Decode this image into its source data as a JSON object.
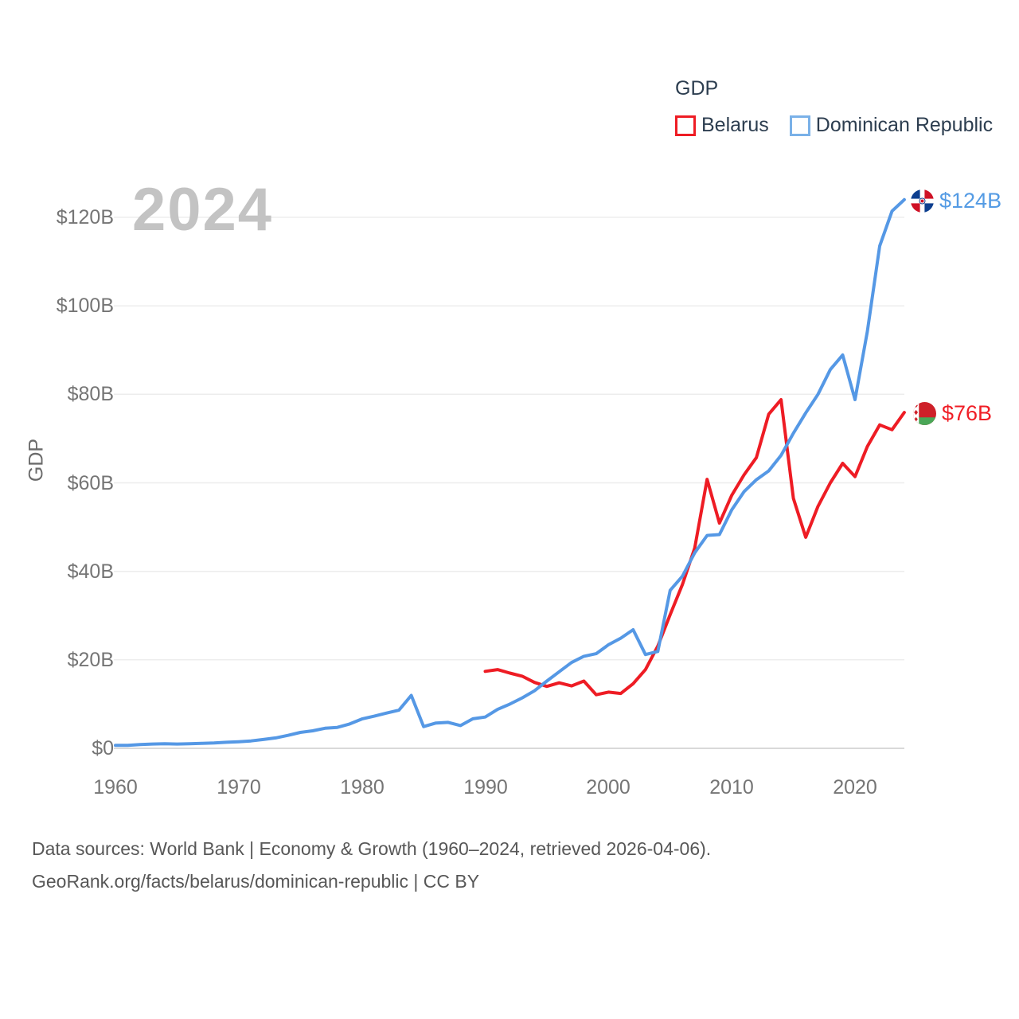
{
  "legend": {
    "title": "GDP",
    "items": [
      {
        "label": "Belarus",
        "color": "#ee1c24"
      },
      {
        "label": "Dominican Republic",
        "color": "#7ab1e8"
      }
    ]
  },
  "watermark": "2024",
  "end_labels": {
    "dominican_republic": {
      "text": "$124B",
      "color": "#549be4",
      "flag": "dominican-republic-flag"
    },
    "belarus": {
      "text": "$76B",
      "color": "#f01e26",
      "flag": "belarus-flag"
    }
  },
  "footer": {
    "line1": "Data sources: World Bank | Economy & Growth (1960–2024, retrieved 2026-04-06).",
    "line2": "GeoRank.org/facts/belarus/dominican-republic | CC BY"
  },
  "chart_data": {
    "type": "line",
    "title": "GDP",
    "xlabel": "",
    "ylabel": "GDP",
    "unit": "billion USD (current)",
    "xlim": [
      1960,
      2026
    ],
    "ylim": [
      0,
      130
    ],
    "grid": "horizontal",
    "legend_position": "top-right",
    "yticks": [
      {
        "value": 0,
        "label": "$0"
      },
      {
        "value": 20,
        "label": "$20B"
      },
      {
        "value": 40,
        "label": "$40B"
      },
      {
        "value": 60,
        "label": "$60B"
      },
      {
        "value": 80,
        "label": "$80B"
      },
      {
        "value": 100,
        "label": "$100B"
      },
      {
        "value": 120,
        "label": "$120B"
      }
    ],
    "xticks": [
      1960,
      1970,
      1980,
      1990,
      2000,
      2010,
      2020
    ],
    "series": [
      {
        "name": "Belarus",
        "color": "#ee1c24",
        "start_year": 1990,
        "end_year": 2024,
        "end_label": "$76B",
        "values": [
          17.4,
          17.8,
          17.0,
          16.3,
          14.9,
          14.0,
          14.8,
          14.1,
          15.2,
          12.1,
          12.7,
          12.4,
          14.6,
          17.8,
          23.1,
          30.2,
          37.0,
          45.3,
          60.8,
          50.9,
          57.2,
          61.8,
          65.7,
          75.5,
          78.8,
          56.5,
          47.7,
          54.7,
          60.0,
          64.4,
          61.4,
          68.2,
          73.1,
          72.0,
          75.9
        ]
      },
      {
        "name": "Dominican Republic",
        "color": "#5598e5",
        "start_year": 1960,
        "end_year": 2024,
        "end_label": "$124B",
        "values": [
          0.67,
          0.66,
          0.85,
          0.97,
          1.05,
          0.97,
          1.05,
          1.12,
          1.21,
          1.36,
          1.49,
          1.67,
          1.99,
          2.35,
          2.93,
          3.6,
          3.95,
          4.54,
          4.73,
          5.5,
          6.63,
          7.27,
          7.97,
          8.62,
          11.96,
          4.91,
          5.72,
          5.87,
          5.15,
          6.68,
          7.07,
          8.8,
          10.0,
          11.4,
          13.0,
          15.2,
          17.3,
          19.4,
          20.8,
          21.4,
          23.4,
          24.9,
          26.8,
          21.2,
          21.9,
          35.7,
          38.9,
          44.2,
          48.1,
          48.3,
          53.9,
          58.0,
          60.7,
          62.7,
          66.2,
          71.2,
          75.8,
          80.0,
          85.6,
          88.9,
          78.8,
          94.2,
          113.5,
          121.4,
          124.0
        ]
      }
    ]
  }
}
